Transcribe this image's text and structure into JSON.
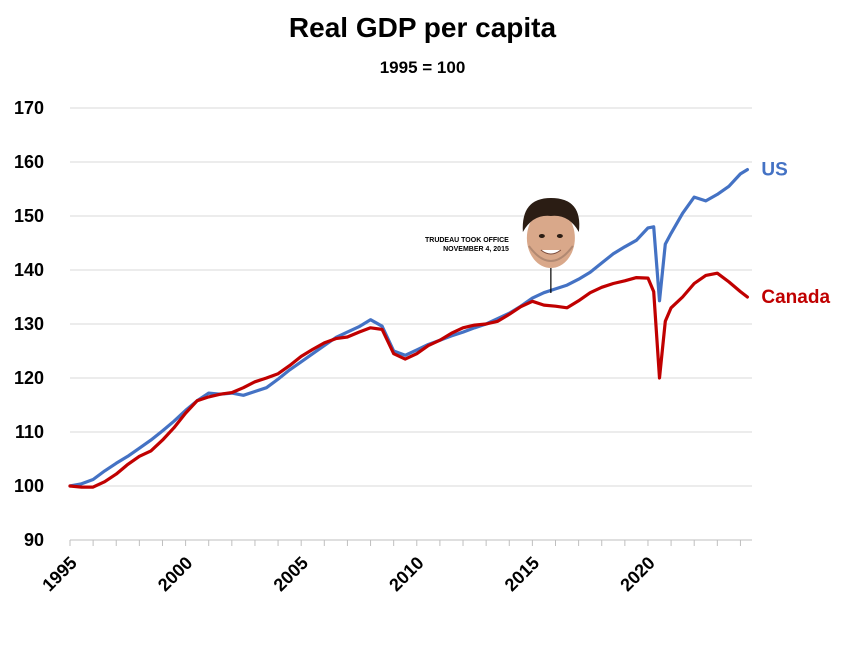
{
  "chart_data": {
    "type": "line",
    "title": "Real GDP per capita",
    "subtitle": "1995 = 100",
    "xlim": [
      1995,
      2024.5
    ],
    "ylim": [
      90,
      170
    ],
    "yticks": [
      90,
      100,
      110,
      120,
      130,
      140,
      150,
      160,
      170
    ],
    "xticks": [
      1995,
      2000,
      2005,
      2010,
      2015,
      2020
    ],
    "grid": true,
    "annotation": {
      "text_line1": "TRUDEAU TOOK OFFICE",
      "text_line2": "NOVEMBER 4, 2015",
      "x": 2015.8,
      "y": 135
    },
    "series": [
      {
        "name": "US",
        "color": "#4472c4",
        "points": [
          [
            1995,
            100
          ],
          [
            1995.5,
            100.4
          ],
          [
            1996,
            101.2
          ],
          [
            1996.5,
            102.8
          ],
          [
            1997,
            104.2
          ],
          [
            1997.5,
            105.5
          ],
          [
            1998,
            107
          ],
          [
            1998.5,
            108.5
          ],
          [
            1999,
            110.2
          ],
          [
            1999.5,
            112
          ],
          [
            2000,
            114
          ],
          [
            2000.5,
            115.8
          ],
          [
            2001,
            117.2
          ],
          [
            2001.5,
            117
          ],
          [
            2002,
            117.2
          ],
          [
            2002.5,
            116.8
          ],
          [
            2003,
            117.5
          ],
          [
            2003.5,
            118.2
          ],
          [
            2004,
            119.8
          ],
          [
            2004.5,
            121.5
          ],
          [
            2005,
            123
          ],
          [
            2005.5,
            124.5
          ],
          [
            2006,
            126
          ],
          [
            2006.5,
            127.5
          ],
          [
            2007,
            128.5
          ],
          [
            2007.5,
            129.5
          ],
          [
            2008,
            130.8
          ],
          [
            2008.5,
            129.6
          ],
          [
            2009,
            125
          ],
          [
            2009.5,
            124.2
          ],
          [
            2010,
            125.2
          ],
          [
            2010.5,
            126.2
          ],
          [
            2011,
            127
          ],
          [
            2011.5,
            127.8
          ],
          [
            2012,
            128.5
          ],
          [
            2012.5,
            129.3
          ],
          [
            2013,
            130
          ],
          [
            2013.5,
            131
          ],
          [
            2014,
            132
          ],
          [
            2014.5,
            133.3
          ],
          [
            2015,
            134.8
          ],
          [
            2015.5,
            135.8
          ],
          [
            2016,
            136.5
          ],
          [
            2016.5,
            137.2
          ],
          [
            2017,
            138.3
          ],
          [
            2017.5,
            139.6
          ],
          [
            2018,
            141.3
          ],
          [
            2018.5,
            143
          ],
          [
            2019,
            144.3
          ],
          [
            2019.5,
            145.5
          ],
          [
            2020,
            147.8
          ],
          [
            2020.25,
            148
          ],
          [
            2020.5,
            134.3
          ],
          [
            2020.75,
            144.8
          ],
          [
            2021,
            146.8
          ],
          [
            2021.5,
            150.5
          ],
          [
            2022,
            153.5
          ],
          [
            2022.5,
            152.8
          ],
          [
            2023,
            154
          ],
          [
            2023.5,
            155.5
          ],
          [
            2024,
            157.8
          ],
          [
            2024.3,
            158.6
          ]
        ]
      },
      {
        "name": "Canada",
        "color": "#c00000",
        "points": [
          [
            1995,
            100
          ],
          [
            1995.5,
            99.8
          ],
          [
            1996,
            99.8
          ],
          [
            1996.5,
            100.8
          ],
          [
            1997,
            102.2
          ],
          [
            1997.5,
            104
          ],
          [
            1998,
            105.5
          ],
          [
            1998.5,
            106.5
          ],
          [
            1999,
            108.5
          ],
          [
            1999.5,
            110.8
          ],
          [
            2000,
            113.5
          ],
          [
            2000.5,
            115.8
          ],
          [
            2001,
            116.5
          ],
          [
            2001.5,
            117
          ],
          [
            2002,
            117.3
          ],
          [
            2002.5,
            118.2
          ],
          [
            2003,
            119.3
          ],
          [
            2003.5,
            120
          ],
          [
            2004,
            120.8
          ],
          [
            2004.5,
            122.3
          ],
          [
            2005,
            124
          ],
          [
            2005.5,
            125.3
          ],
          [
            2006,
            126.5
          ],
          [
            2006.5,
            127.3
          ],
          [
            2007,
            127.6
          ],
          [
            2007.5,
            128.5
          ],
          [
            2008,
            129.3
          ],
          [
            2008.5,
            129
          ],
          [
            2009,
            124.5
          ],
          [
            2009.5,
            123.5
          ],
          [
            2010,
            124.5
          ],
          [
            2010.5,
            126
          ],
          [
            2011,
            127
          ],
          [
            2011.5,
            128.3
          ],
          [
            2012,
            129.3
          ],
          [
            2012.5,
            129.8
          ],
          [
            2013,
            130
          ],
          [
            2013.5,
            130.5
          ],
          [
            2014,
            131.8
          ],
          [
            2014.5,
            133.2
          ],
          [
            2015,
            134.2
          ],
          [
            2015.5,
            133.5
          ],
          [
            2016,
            133.3
          ],
          [
            2016.5,
            133
          ],
          [
            2017,
            134.3
          ],
          [
            2017.5,
            135.8
          ],
          [
            2018,
            136.8
          ],
          [
            2018.5,
            137.5
          ],
          [
            2019,
            138
          ],
          [
            2019.5,
            138.6
          ],
          [
            2020,
            138.5
          ],
          [
            2020.25,
            136
          ],
          [
            2020.5,
            120
          ],
          [
            2020.75,
            130.5
          ],
          [
            2021,
            133
          ],
          [
            2021.5,
            135
          ],
          [
            2022,
            137.5
          ],
          [
            2022.5,
            139
          ],
          [
            2023,
            139.4
          ],
          [
            2023.5,
            137.8
          ],
          [
            2024,
            136
          ],
          [
            2024.3,
            135
          ]
        ]
      }
    ]
  }
}
